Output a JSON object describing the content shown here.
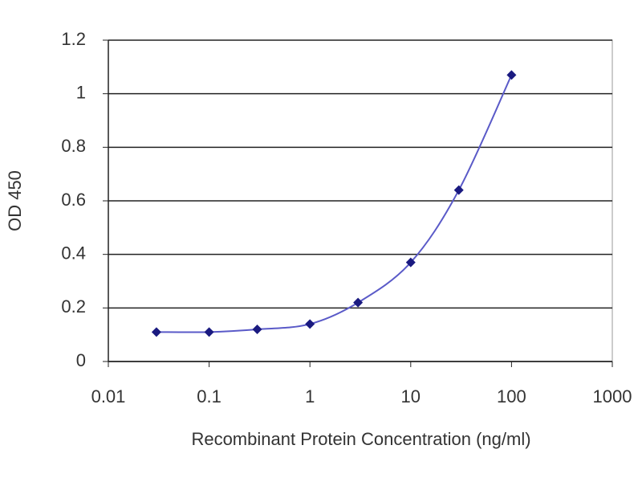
{
  "chart_data": {
    "type": "line",
    "x_label": "Recombinant Protein Concentration (ng/ml)",
    "y_label": "OD 450",
    "x": [
      0.03,
      0.1,
      0.3,
      1,
      3,
      10,
      30,
      100
    ],
    "series": [
      {
        "color": "#1a1a80",
        "line_color": "#5a5ac8",
        "values": [
          0.11,
          0.11,
          0.12,
          0.14,
          0.22,
          0.37,
          0.64,
          1.07
        ]
      }
    ],
    "xscale": "log",
    "xlim": [
      0.01,
      1000
    ],
    "xticks": [
      0.01,
      0.1,
      1,
      10,
      100,
      1000
    ],
    "ylim": [
      0,
      1.2
    ],
    "yticks": [
      0,
      0.2,
      0.4,
      0.6,
      0.8,
      1,
      1.2
    ],
    "grid": true
  }
}
